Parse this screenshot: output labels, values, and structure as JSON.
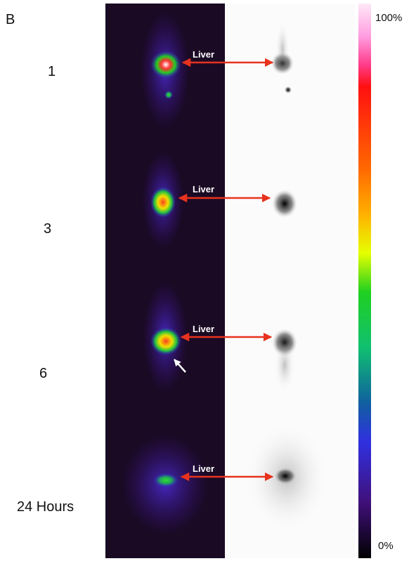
{
  "panel_label": "B",
  "rows": [
    {
      "label": "1",
      "annotation": "Liver"
    },
    {
      "label": "3",
      "annotation": "Liver"
    },
    {
      "label": "6",
      "annotation": "Liver"
    },
    {
      "label": "24 Hours",
      "annotation": "Liver"
    }
  ],
  "colorbar": {
    "max_label": "100%",
    "min_label": "0%"
  }
}
